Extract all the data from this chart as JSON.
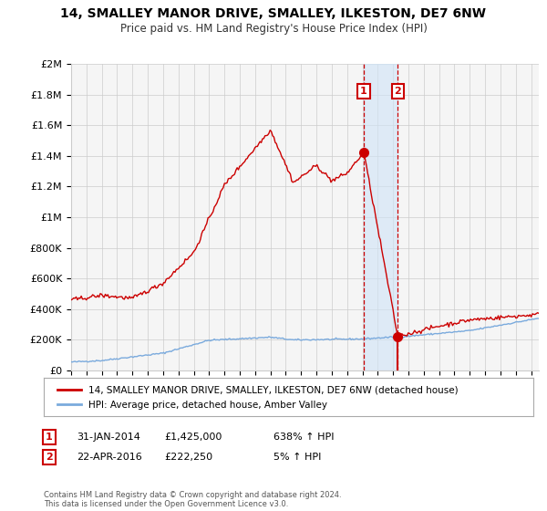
{
  "title": "14, SMALLEY MANOR DRIVE, SMALLEY, ILKESTON, DE7 6NW",
  "subtitle": "Price paid vs. HM Land Registry's House Price Index (HPI)",
  "legend_line1": "14, SMALLEY MANOR DRIVE, SMALLEY, ILKESTON, DE7 6NW (detached house)",
  "legend_line2": "HPI: Average price, detached house, Amber Valley",
  "transaction1_date": "31-JAN-2014",
  "transaction1_price": "£1,425,000",
  "transaction1_hpi": "638% ↑ HPI",
  "transaction1_year": 2014.08,
  "transaction1_value": 1425000,
  "transaction2_date": "22-APR-2016",
  "transaction2_price": "£222,250",
  "transaction2_hpi": "5% ↑ HPI",
  "transaction2_year": 2016.3,
  "transaction2_value": 222250,
  "hpi_color": "#7aaadd",
  "price_color": "#cc0000",
  "background_color": "#f5f5f5",
  "grid_color": "#cccccc",
  "footer_text": "Contains HM Land Registry data © Crown copyright and database right 2024.\nThis data is licensed under the Open Government Licence v3.0.",
  "ylim_max": 2000000,
  "xmin": 1995.0,
  "xmax": 2025.5
}
